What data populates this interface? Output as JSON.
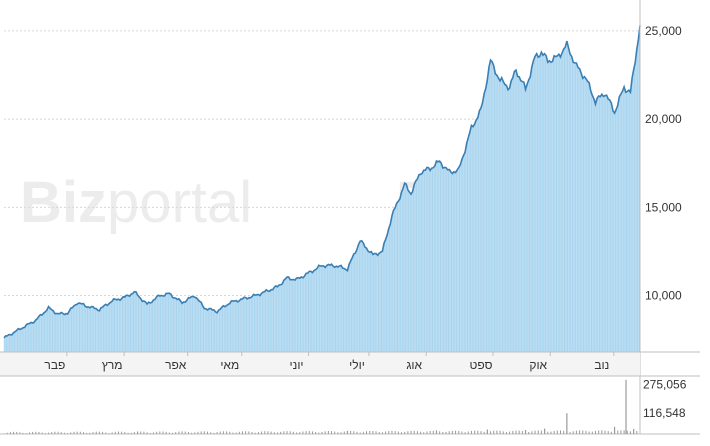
{
  "watermark": {
    "bold": "Biz",
    "light": "portal"
  },
  "chart_data": {
    "type": "area",
    "xlabel": "",
    "ylabel": "",
    "ylim": [
      6800,
      26300
    ],
    "y_ticks": [
      "10,000",
      "15,000",
      "20,000",
      "25,000"
    ],
    "y_tick_values": [
      10000,
      15000,
      20000,
      25000
    ],
    "month_labels": [
      "פבר",
      "מרץ",
      "אפר",
      "מאי",
      "יוני",
      "יולי",
      "אוג",
      "ספט",
      "אוק",
      "נוב"
    ],
    "month_positions": [
      0.8,
      1.7,
      2.7,
      3.55,
      4.6,
      5.55,
      6.45,
      7.5,
      8.4,
      9.4
    ],
    "x_range": [
      0,
      10
    ],
    "series": [
      {
        "values": [
          [
            0.0,
            7600
          ],
          [
            0.3,
            8200
          ],
          [
            0.5,
            8600
          ],
          [
            0.7,
            9300
          ],
          [
            0.85,
            8950
          ],
          [
            1.0,
            9000
          ],
          [
            1.15,
            9600
          ],
          [
            1.3,
            9400
          ],
          [
            1.5,
            9200
          ],
          [
            1.7,
            9700
          ],
          [
            1.9,
            9900
          ],
          [
            2.05,
            10200
          ],
          [
            2.25,
            9500
          ],
          [
            2.45,
            10000
          ],
          [
            2.6,
            10100
          ],
          [
            2.8,
            9600
          ],
          [
            3.0,
            10000
          ],
          [
            3.15,
            9300
          ],
          [
            3.35,
            9100
          ],
          [
            3.55,
            9600
          ],
          [
            3.75,
            9800
          ],
          [
            3.95,
            10000
          ],
          [
            4.1,
            10200
          ],
          [
            4.3,
            10500
          ],
          [
            4.45,
            11000
          ],
          [
            4.6,
            10900
          ],
          [
            4.8,
            11300
          ],
          [
            5.0,
            11700
          ],
          [
            5.2,
            11700
          ],
          [
            5.4,
            11500
          ],
          [
            5.6,
            13100
          ],
          [
            5.8,
            12300
          ],
          [
            5.95,
            12500
          ],
          [
            6.1,
            14500
          ],
          [
            6.3,
            16300
          ],
          [
            6.4,
            15800
          ],
          [
            6.55,
            17000
          ],
          [
            6.7,
            17200
          ],
          [
            6.85,
            17600
          ],
          [
            7.0,
            17000
          ],
          [
            7.15,
            17100
          ],
          [
            7.35,
            19500
          ],
          [
            7.5,
            20500
          ],
          [
            7.65,
            23300
          ],
          [
            7.8,
            22200
          ],
          [
            7.95,
            21800
          ],
          [
            8.05,
            22800
          ],
          [
            8.2,
            21700
          ],
          [
            8.35,
            23500
          ],
          [
            8.45,
            23800
          ],
          [
            8.55,
            23300
          ],
          [
            8.7,
            23500
          ],
          [
            8.85,
            24200
          ],
          [
            9.0,
            23000
          ],
          [
            9.15,
            22300
          ],
          [
            9.3,
            21000
          ],
          [
            9.45,
            21500
          ],
          [
            9.6,
            20400
          ],
          [
            9.75,
            21800
          ],
          [
            9.85,
            21500
          ],
          [
            9.93,
            23500
          ],
          [
            10.0,
            25300
          ]
        ]
      }
    ],
    "volume": {
      "ticks": [
        "275,056",
        "116,548"
      ],
      "tick_values": [
        275056,
        116548
      ],
      "ylim": [
        0,
        310000
      ],
      "spikes": [
        [
          2.1,
          14000
        ],
        [
          5.4,
          18000
        ],
        [
          6.8,
          20000
        ],
        [
          7.6,
          25000
        ],
        [
          8.2,
          22000
        ],
        [
          8.5,
          30000
        ],
        [
          8.85,
          115000
        ],
        [
          9.6,
          40000
        ],
        [
          9.78,
          300000
        ],
        [
          9.9,
          28000
        ]
      ]
    },
    "colors": {
      "line": "#3a7fb3",
      "fill": "#a8d4ee",
      "grid": "#d8d8d8",
      "axis": "#bfbfbf",
      "volume": "#9a9a9a"
    }
  }
}
